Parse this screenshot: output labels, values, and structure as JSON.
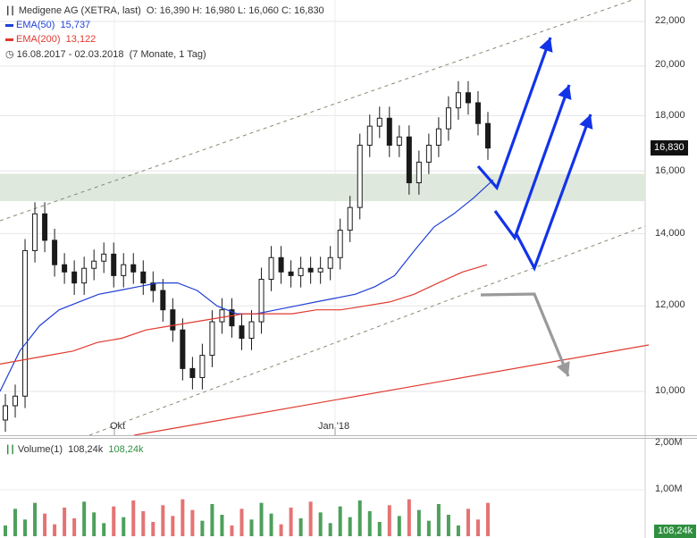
{
  "header": {
    "title": "Medigene AG (XETRA, last)",
    "ohlc": "O: 16,390   H: 16,980   L: 16,060   C: 16,830",
    "ema50_label": "EMA(50)",
    "ema50_value": "15,737",
    "ema200_label": "EMA(200)",
    "ema200_value": "13,122",
    "range": "16.08.2017 - 02.03.2018",
    "range_detail": "(7 Monate, 1 Tag)"
  },
  "last_price": "16,830",
  "volume_header": {
    "label": "Volume(1)",
    "value1": "108,24k",
    "value2": "108,24k"
  },
  "volume_last": "108,24k",
  "colors": {
    "ema50": "#1f3fd6",
    "ema200": "#e03a2f",
    "up": "#2f8f3f",
    "down": "#e05a5a",
    "arrow": "#1233e8",
    "arrow_gray": "#9a9a9a",
    "zone": "#dfe8dc"
  },
  "chart_data": {
    "type": "candlestick",
    "price_axis": {
      "ticks": [
        "22,000",
        "20,000",
        "18,000",
        "16,000",
        "14,000",
        "12,000",
        "10,000"
      ],
      "tick_values": [
        22,
        20,
        18,
        16,
        14,
        12,
        10
      ],
      "scale": "log",
      "ylim": [
        9.6,
        23.5
      ]
    },
    "x_ticks": [
      "Okt",
      "Jan '18"
    ],
    "support_zone": [
      15.0,
      15.9
    ],
    "close_series_approx": [
      9.7,
      9.9,
      13.5,
      14.6,
      13.8,
      13.1,
      12.9,
      12.6,
      13.0,
      13.2,
      13.4,
      12.8,
      13.1,
      12.9,
      12.6,
      12.4,
      11.9,
      11.4,
      10.5,
      10.3,
      10.8,
      11.6,
      11.9,
      11.5,
      11.2,
      11.6,
      12.7,
      13.3,
      12.9,
      12.8,
      13.0,
      12.9,
      13.0,
      13.3,
      14.1,
      14.8,
      16.9,
      17.6,
      17.9,
      16.9,
      17.2,
      15.6,
      16.3,
      16.9,
      17.5,
      18.3,
      18.9,
      18.5,
      17.7,
      16.8
    ],
    "ema50_approx": [
      10.0,
      10.9,
      11.5,
      11.9,
      12.1,
      12.3,
      12.4,
      12.5,
      12.6,
      12.6,
      12.4,
      12.0,
      11.8,
      11.8,
      11.9,
      12.0,
      12.1,
      12.2,
      12.3,
      12.5,
      12.8,
      13.5,
      14.2,
      14.6,
      15.1,
      15.7
    ],
    "ema200_approx": [
      10.6,
      10.7,
      10.8,
      10.9,
      11.1,
      11.2,
      11.4,
      11.5,
      11.6,
      11.7,
      11.8,
      11.8,
      11.8,
      11.9,
      11.9,
      12.0,
      12.1,
      12.3,
      12.6,
      12.9,
      13.1
    ],
    "volume_axis": {
      "ticks": [
        "2,00M",
        "1,00M"
      ],
      "tick_values": [
        2000000,
        1000000
      ]
    },
    "series": [
      {
        "name": "EMA(50)",
        "value": 15.737
      },
      {
        "name": "EMA(200)",
        "value": 13.122
      },
      {
        "name": "Volume(1)",
        "value": 108240
      }
    ]
  }
}
